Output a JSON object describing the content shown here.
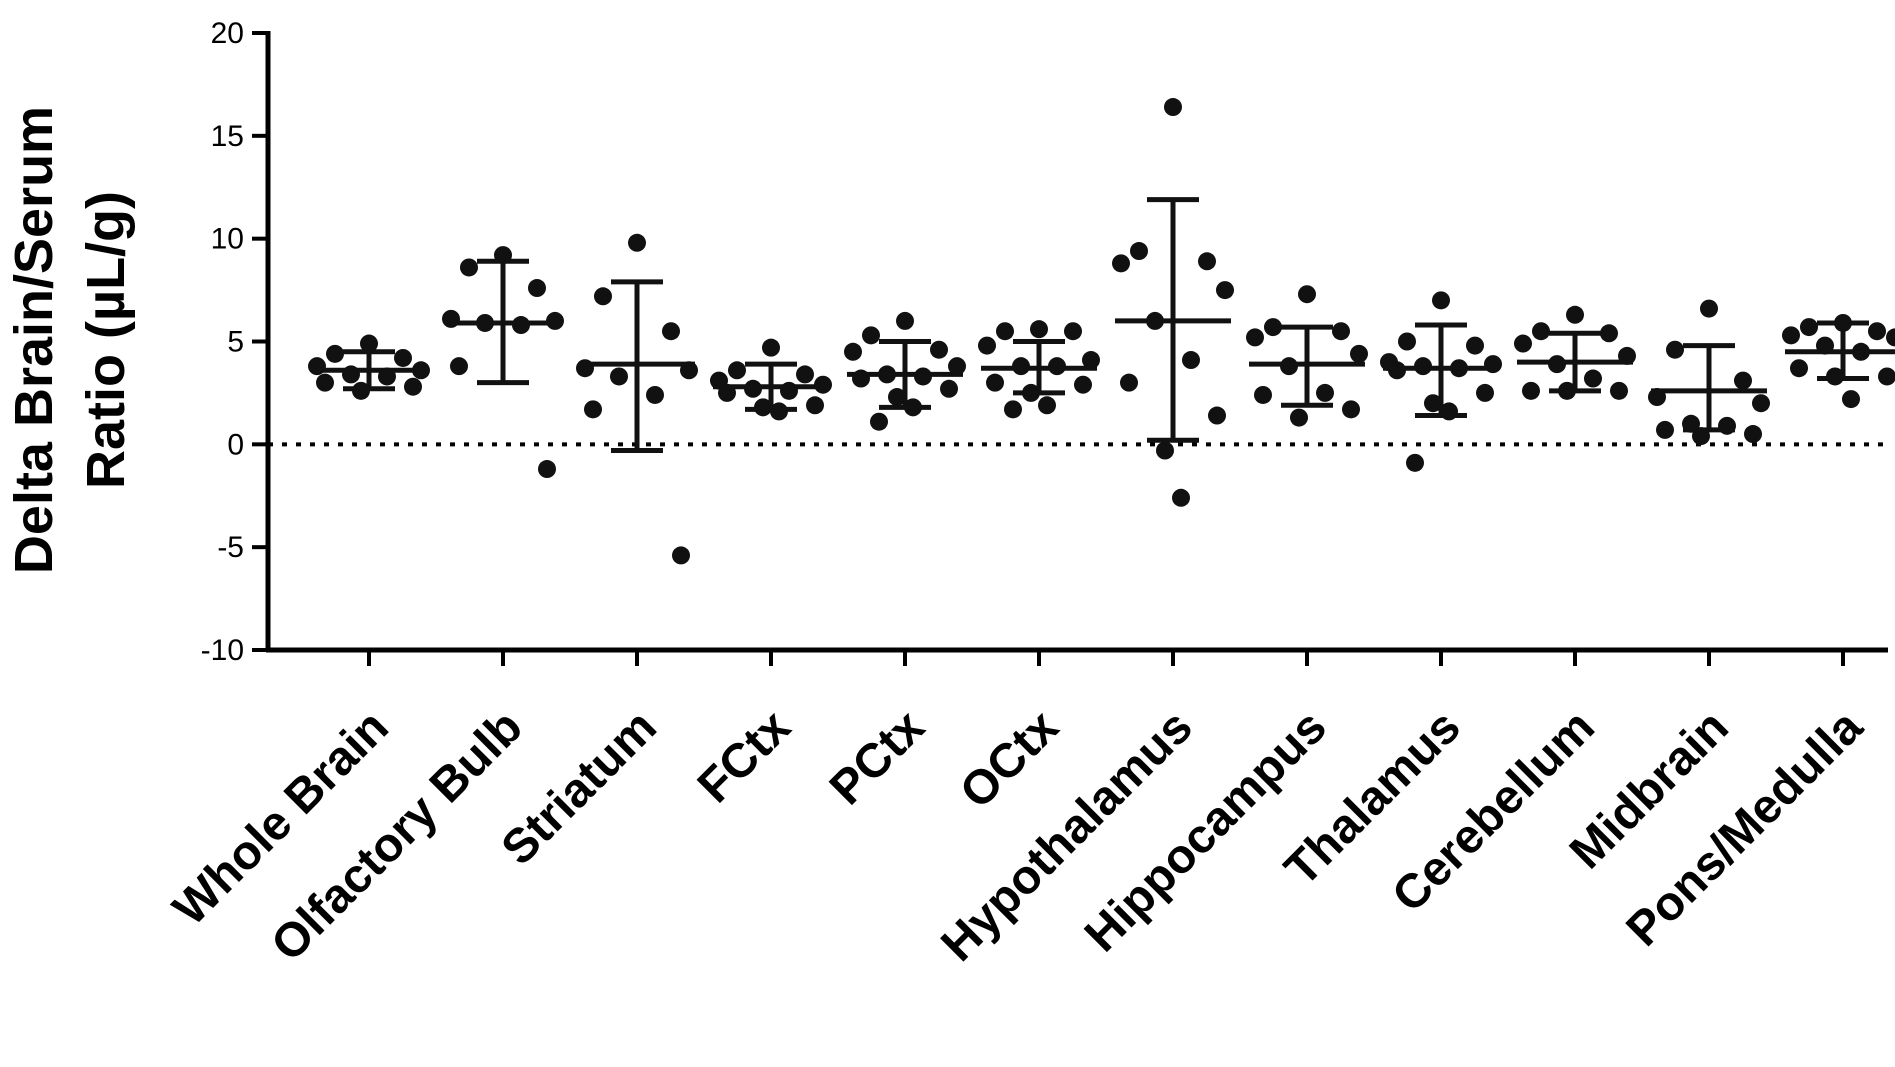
{
  "chart_data": {
    "type": "scatter",
    "ylabel_line1": "Delta Brain/Serum",
    "ylabel_line2": "Ratio (µL/g)",
    "ylim": [
      -10,
      20
    ],
    "yticks": [
      20,
      15,
      10,
      5,
      0,
      -5,
      -10
    ],
    "reference_line": 0,
    "grid": false,
    "legend": "none",
    "categories": [
      "Whole Brain",
      "Olfactory Bulb",
      "Striatum",
      "FCtx",
      "PCtx",
      "OCtx",
      "Hypothalamus",
      "Hippocampus",
      "Thalamus",
      "Cerebellum",
      "Midbrain",
      "Pons/Medulla"
    ],
    "groups": [
      {
        "category": "Whole Brain",
        "mean": 3.6,
        "upper": 4.5,
        "lower": 2.7,
        "points": [
          4.9,
          4.4,
          4.2,
          3.8,
          3.6,
          3.4,
          3.3,
          3.0,
          2.8,
          2.6
        ]
      },
      {
        "category": "Olfactory Bulb",
        "mean": 5.9,
        "upper": 8.9,
        "lower": 3.0,
        "points": [
          9.2,
          8.6,
          7.6,
          6.1,
          6.0,
          5.9,
          5.8,
          3.8,
          -1.2
        ]
      },
      {
        "category": "Striatum",
        "mean": 3.9,
        "upper": 7.9,
        "lower": -0.3,
        "points": [
          9.8,
          7.2,
          5.5,
          3.7,
          3.6,
          3.3,
          2.4,
          1.7,
          -5.4
        ]
      },
      {
        "category": "FCtx",
        "mean": 2.8,
        "upper": 3.9,
        "lower": 1.7,
        "points": [
          4.7,
          3.6,
          3.4,
          3.1,
          2.9,
          2.7,
          2.6,
          2.5,
          1.9,
          1.8,
          1.6
        ]
      },
      {
        "category": "PCtx",
        "mean": 3.4,
        "upper": 5.0,
        "lower": 1.8,
        "points": [
          6.0,
          5.3,
          4.6,
          4.5,
          3.8,
          3.4,
          3.3,
          3.2,
          2.7,
          2.3,
          1.8,
          1.1
        ]
      },
      {
        "category": "OCtx",
        "mean": 3.7,
        "upper": 5.0,
        "lower": 2.5,
        "points": [
          5.6,
          5.5,
          5.5,
          4.8,
          4.1,
          3.8,
          3.8,
          3.0,
          2.9,
          2.5,
          1.9,
          1.7
        ]
      },
      {
        "category": "Hypothalamus",
        "mean": 6.0,
        "upper": 11.9,
        "lower": 0.2,
        "points": [
          16.4,
          9.4,
          8.9,
          8.8,
          7.5,
          6.0,
          4.1,
          3.0,
          1.4,
          -0.3,
          -2.6
        ]
      },
      {
        "category": "Hippocampus",
        "mean": 3.9,
        "upper": 5.7,
        "lower": 1.9,
        "points": [
          7.3,
          5.7,
          5.5,
          5.2,
          4.4,
          3.8,
          2.5,
          2.4,
          1.7,
          1.3
        ]
      },
      {
        "category": "Thalamus",
        "mean": 3.7,
        "upper": 5.8,
        "lower": 1.4,
        "points": [
          7.0,
          5.0,
          4.8,
          4.0,
          3.9,
          3.8,
          3.7,
          3.6,
          2.5,
          2.0,
          1.6,
          -0.9
        ]
      },
      {
        "category": "Cerebellum",
        "mean": 4.0,
        "upper": 5.4,
        "lower": 2.6,
        "points": [
          6.3,
          5.5,
          5.4,
          4.9,
          4.3,
          3.9,
          3.2,
          2.6,
          2.6,
          2.6
        ]
      },
      {
        "category": "Midbrain",
        "mean": 2.6,
        "upper": 4.8,
        "lower": 0.7,
        "points": [
          6.6,
          4.6,
          3.1,
          2.3,
          2.0,
          1.0,
          0.9,
          0.7,
          0.5,
          0.4
        ]
      },
      {
        "category": "Pons/Medulla",
        "mean": 4.5,
        "upper": 5.9,
        "lower": 3.2,
        "points": [
          5.9,
          5.7,
          5.5,
          5.3,
          5.2,
          4.8,
          4.5,
          3.7,
          3.3,
          3.3,
          2.2
        ]
      }
    ]
  }
}
